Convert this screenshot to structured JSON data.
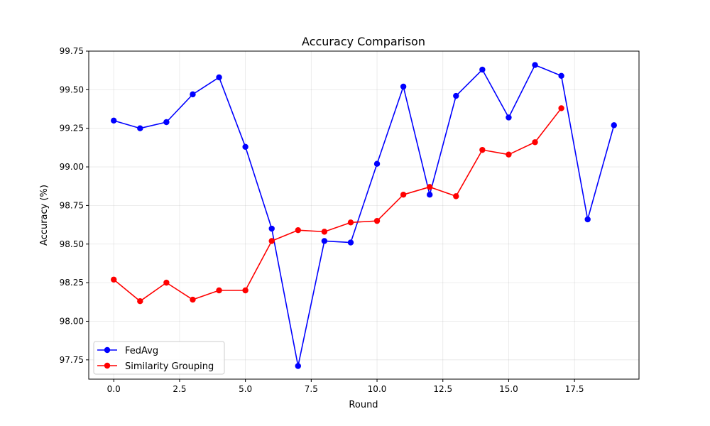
{
  "chart_data": {
    "type": "line",
    "title": "Accuracy Comparison",
    "xlabel": "Round",
    "ylabel": "Accuracy (%)",
    "xlim": [
      -0.95,
      19.95
    ],
    "ylim": [
      97.625,
      99.75
    ],
    "xticks": [
      "0.0",
      "2.5",
      "5.0",
      "7.5",
      "10.0",
      "12.5",
      "15.0",
      "17.5"
    ],
    "yticks": [
      "97.75",
      "98.00",
      "98.25",
      "98.50",
      "98.75",
      "99.00",
      "99.25",
      "99.50",
      "99.75"
    ],
    "grid": true,
    "legend_position": "lower-left",
    "series": [
      {
        "name": "FedAvg",
        "color": "#0000ff",
        "x": [
          0,
          1,
          2,
          3,
          4,
          5,
          6,
          7,
          8,
          9,
          10,
          11,
          12,
          13,
          14,
          15,
          16,
          17,
          18,
          19
        ],
        "values": [
          99.3,
          99.25,
          99.29,
          99.47,
          99.58,
          99.13,
          98.6,
          97.71,
          98.52,
          98.51,
          99.02,
          99.52,
          98.82,
          99.46,
          99.63,
          99.32,
          99.66,
          99.59,
          98.66,
          99.27
        ]
      },
      {
        "name": "Similarity Grouping",
        "color": "#ff0000",
        "x": [
          0,
          1,
          2,
          3,
          4,
          5,
          6,
          7,
          8,
          9,
          10,
          11,
          12,
          13,
          14,
          15,
          16,
          17
        ],
        "values": [
          98.27,
          98.13,
          98.25,
          98.14,
          98.2,
          98.2,
          98.52,
          98.59,
          98.58,
          98.64,
          98.65,
          98.82,
          98.87,
          98.81,
          99.11,
          99.08,
          99.16,
          99.38
        ]
      }
    ]
  }
}
